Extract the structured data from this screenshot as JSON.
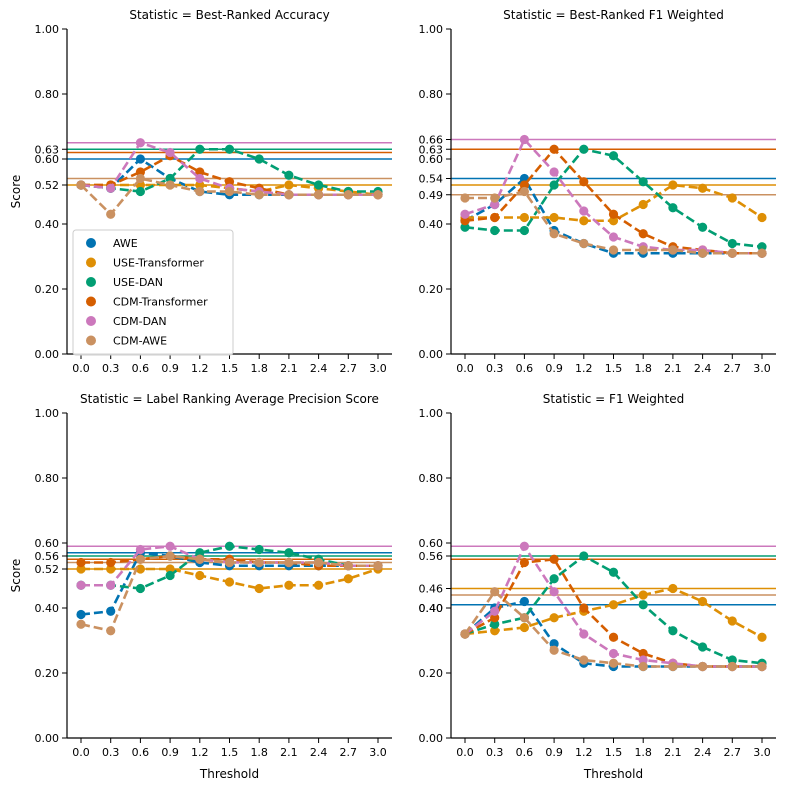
{
  "chart_data": {
    "type": "line",
    "legend": {
      "position": "lower-left",
      "panel": 0,
      "entries": [
        "AWE",
        "USE-Transformer",
        "USE-DAN",
        "CDM-Transformer",
        "CDM-DAN",
        "CDM-AWE"
      ]
    },
    "colors": {
      "AWE": "#0173b2",
      "USE-Transformer": "#de8f05",
      "USE-DAN": "#029e73",
      "CDM-Transformer": "#d55e00",
      "CDM-DAN": "#cc78bc",
      "CDM-AWE": "#ca9161"
    },
    "x": [
      0.0,
      0.3,
      0.6,
      0.9,
      1.2,
      1.5,
      1.8,
      2.1,
      2.4,
      2.7,
      3.0
    ],
    "x_tick_labels": [
      "0.0",
      "0.3",
      "0.6",
      "0.9",
      "1.2",
      "1.5",
      "1.8",
      "2.1",
      "2.4",
      "2.7",
      "3.0"
    ],
    "ylim": [
      0,
      1
    ],
    "base_y_ticks": [
      "0.00",
      "0.20",
      "0.40",
      "0.80",
      "1.00"
    ],
    "grid": false,
    "panels": [
      {
        "title": "Statistic = Best-Ranked Accuracy",
        "xlabel": "",
        "ylabel": "Score",
        "hlines": [
          {
            "series": "AWE",
            "y": 0.6
          },
          {
            "series": "USE-Transformer",
            "y": 0.52
          },
          {
            "series": "USE-DAN",
            "y": 0.63
          },
          {
            "series": "CDM-Transformer",
            "y": 0.62
          },
          {
            "series": "CDM-DAN",
            "y": 0.65
          },
          {
            "series": "CDM-AWE",
            "y": 0.54
          }
        ],
        "extra_y_ticks": [
          "0.52",
          "0.60",
          "0.63"
        ],
        "series": [
          {
            "name": "AWE",
            "values": [
              0.52,
              0.51,
              0.6,
              0.54,
              0.5,
              0.49,
              0.49,
              0.49,
              0.49,
              0.49,
              0.49
            ]
          },
          {
            "name": "USE-Transformer",
            "values": [
              0.52,
              0.52,
              0.52,
              0.52,
              0.52,
              0.51,
              0.5,
              0.52,
              0.51,
              0.5,
              0.49
            ]
          },
          {
            "name": "USE-DAN",
            "values": [
              0.52,
              0.51,
              0.5,
              0.54,
              0.63,
              0.63,
              0.6,
              0.55,
              0.52,
              0.5,
              0.5
            ]
          },
          {
            "name": "CDM-Transformer",
            "values": [
              0.52,
              0.52,
              0.56,
              0.61,
              0.56,
              0.53,
              0.51,
              0.49,
              0.49,
              0.49,
              0.49
            ]
          },
          {
            "name": "CDM-DAN",
            "values": [
              0.52,
              0.51,
              0.65,
              0.62,
              0.54,
              0.51,
              0.5,
              0.49,
              0.49,
              0.49,
              0.49
            ]
          },
          {
            "name": "CDM-AWE",
            "values": [
              0.52,
              0.43,
              0.54,
              0.52,
              0.5,
              0.5,
              0.49,
              0.49,
              0.49,
              0.49,
              0.49
            ]
          }
        ]
      },
      {
        "title": "Statistic = Best-Ranked F1 Weighted",
        "xlabel": "",
        "ylabel": "",
        "hlines": [
          {
            "series": "AWE",
            "y": 0.54
          },
          {
            "series": "USE-Transformer",
            "y": 0.52
          },
          {
            "series": "USE-DAN",
            "y": 0.63
          },
          {
            "series": "CDM-Transformer",
            "y": 0.63
          },
          {
            "series": "CDM-DAN",
            "y": 0.66
          },
          {
            "series": "CDM-AWE",
            "y": 0.49
          }
        ],
        "extra_y_ticks": [
          "0.49",
          "0.54",
          "0.60",
          "0.63",
          "0.66"
        ],
        "series": [
          {
            "name": "AWE",
            "values": [
              0.41,
              0.46,
              0.54,
              0.38,
              0.34,
              0.31,
              0.31,
              0.31,
              0.31,
              0.31,
              0.31
            ]
          },
          {
            "name": "USE-Transformer",
            "values": [
              0.42,
              0.42,
              0.42,
              0.42,
              0.41,
              0.41,
              0.46,
              0.52,
              0.51,
              0.48,
              0.42
            ]
          },
          {
            "name": "USE-DAN",
            "values": [
              0.39,
              0.38,
              0.38,
              0.52,
              0.63,
              0.61,
              0.53,
              0.45,
              0.39,
              0.34,
              0.33
            ]
          },
          {
            "name": "CDM-Transformer",
            "values": [
              0.41,
              0.42,
              0.52,
              0.63,
              0.53,
              0.43,
              0.37,
              0.33,
              0.32,
              0.31,
              0.31
            ]
          },
          {
            "name": "CDM-DAN",
            "values": [
              0.43,
              0.46,
              0.66,
              0.56,
              0.44,
              0.36,
              0.33,
              0.32,
              0.32,
              0.31,
              0.31
            ]
          },
          {
            "name": "CDM-AWE",
            "values": [
              0.48,
              0.48,
              0.5,
              0.37,
              0.34,
              0.32,
              0.32,
              0.32,
              0.31,
              0.31,
              0.31
            ]
          }
        ]
      },
      {
        "title": "Statistic = Label Ranking Average Precision Score",
        "xlabel": "Threshold",
        "ylabel": "Score",
        "hlines": [
          {
            "series": "AWE",
            "y": 0.57
          },
          {
            "series": "USE-Transformer",
            "y": 0.52
          },
          {
            "series": "USE-DAN",
            "y": 0.56
          },
          {
            "series": "CDM-Transformer",
            "y": 0.55
          },
          {
            "series": "CDM-DAN",
            "y": 0.59
          },
          {
            "series": "CDM-AWE",
            "y": 0.54
          }
        ],
        "extra_y_ticks": [
          "0.52",
          "0.56",
          "0.60"
        ],
        "series": [
          {
            "name": "AWE",
            "values": [
              0.38,
              0.39,
              0.57,
              0.56,
              0.54,
              0.53,
              0.53,
              0.53,
              0.53,
              0.53,
              0.53
            ]
          },
          {
            "name": "USE-Transformer",
            "values": [
              0.52,
              0.52,
              0.52,
              0.52,
              0.5,
              0.48,
              0.46,
              0.47,
              0.47,
              0.49,
              0.52
            ]
          },
          {
            "name": "USE-DAN",
            "values": [
              0.47,
              0.47,
              0.46,
              0.5,
              0.57,
              0.59,
              0.58,
              0.57,
              0.55,
              0.53,
              0.53
            ]
          },
          {
            "name": "CDM-Transformer",
            "values": [
              0.54,
              0.54,
              0.55,
              0.56,
              0.55,
              0.55,
              0.54,
              0.54,
              0.53,
              0.53,
              0.53
            ]
          },
          {
            "name": "CDM-DAN",
            "values": [
              0.47,
              0.47,
              0.58,
              0.59,
              0.55,
              0.54,
              0.54,
              0.54,
              0.54,
              0.53,
              0.53
            ]
          },
          {
            "name": "CDM-AWE",
            "values": [
              0.35,
              0.33,
              0.55,
              0.56,
              0.55,
              0.54,
              0.54,
              0.54,
              0.54,
              0.53,
              0.53
            ]
          }
        ]
      },
      {
        "title": "Statistic = F1 Weighted",
        "xlabel": "Threshold",
        "ylabel": "",
        "hlines": [
          {
            "series": "AWE",
            "y": 0.41
          },
          {
            "series": "USE-Transformer",
            "y": 0.46
          },
          {
            "series": "USE-DAN",
            "y": 0.56
          },
          {
            "series": "CDM-Transformer",
            "y": 0.55
          },
          {
            "series": "CDM-DAN",
            "y": 0.59
          },
          {
            "series": "CDM-AWE",
            "y": 0.44
          }
        ],
        "extra_y_ticks": [
          "0.40",
          "0.46",
          "0.56",
          "0.60"
        ],
        "series": [
          {
            "name": "AWE",
            "values": [
              0.32,
              0.4,
              0.42,
              0.29,
              0.23,
              0.22,
              0.22,
              0.22,
              0.22,
              0.22,
              0.22
            ]
          },
          {
            "name": "USE-Transformer",
            "values": [
              0.32,
              0.33,
              0.34,
              0.37,
              0.39,
              0.41,
              0.44,
              0.46,
              0.42,
              0.36,
              0.31
            ]
          },
          {
            "name": "USE-DAN",
            "values": [
              0.32,
              0.35,
              0.37,
              0.49,
              0.56,
              0.51,
              0.41,
              0.33,
              0.28,
              0.24,
              0.23
            ]
          },
          {
            "name": "CDM-Transformer",
            "values": [
              0.32,
              0.37,
              0.54,
              0.55,
              0.4,
              0.31,
              0.26,
              0.23,
              0.22,
              0.22,
              0.22
            ]
          },
          {
            "name": "CDM-DAN",
            "values": [
              0.32,
              0.39,
              0.59,
              0.45,
              0.32,
              0.26,
              0.24,
              0.23,
              0.22,
              0.22,
              0.22
            ]
          },
          {
            "name": "CDM-AWE",
            "values": [
              0.32,
              0.45,
              0.37,
              0.27,
              0.24,
              0.23,
              0.22,
              0.22,
              0.22,
              0.22,
              0.22
            ]
          }
        ]
      }
    ]
  }
}
